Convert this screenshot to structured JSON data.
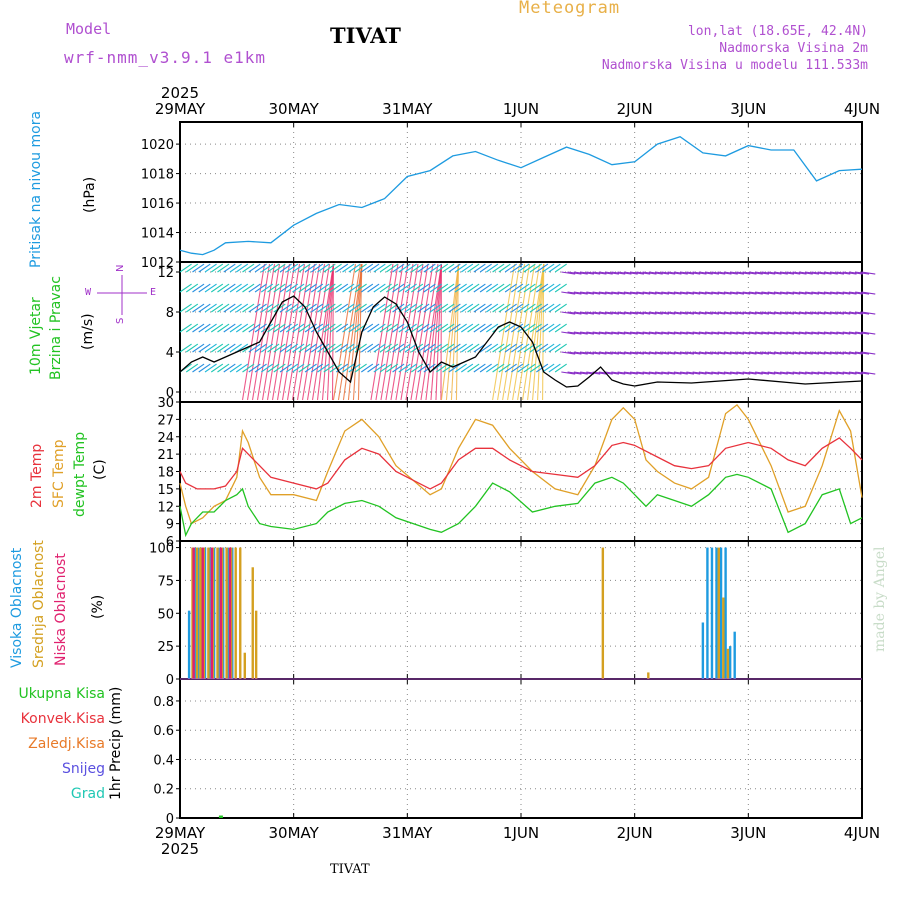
{
  "header": {
    "model_label": "Model",
    "model_name": "wrf-nmm_v3.9.1 e1km",
    "station": "TIVAT",
    "title": "Meteogram",
    "lonlat": "lon,lat (18.65E, 42.4N)",
    "elevation": "Nadmorska Visina 2m",
    "model_elevation": "Nadmorska Visina u modelu 111.533m",
    "footer_station": "TIVAT",
    "credit": "made by Angel"
  },
  "colors": {
    "pressure": "#1e9be0",
    "t2m": "#e8323c",
    "sfc": "#e0a028",
    "dew": "#22c322",
    "visoka": "#1e9be0",
    "srednja": "#d4a020",
    "niska": "#e0206e",
    "purple": "#a030c8",
    "wind_speed": "#000000"
  },
  "chart_data": [
    {
      "type": "line",
      "panel": "pressure",
      "ylabel_main": "Pritisak na nivou mora",
      "unit": "(hPa)",
      "x_ticks": [
        "29MAY",
        "30MAY",
        "31MAY",
        "1JUN",
        "2JUN",
        "3JUN",
        "4JUN"
      ],
      "x_year": "2025",
      "y_ticks": [
        "1012",
        "1014",
        "1016",
        "1018",
        "1020"
      ],
      "ylim": [
        1012,
        1021.5
      ],
      "grid": true,
      "series": [
        {
          "x": [
            0,
            0.1,
            0.2,
            0.3,
            0.4,
            0.6,
            0.8,
            1.0,
            1.2,
            1.4,
            1.6,
            1.8,
            2.0,
            2.2,
            2.4,
            2.6,
            2.8,
            3.0,
            3.2,
            3.4,
            3.6,
            3.8,
            4.0,
            4.2,
            4.4,
            4.6,
            4.8,
            5.0,
            5.2,
            5.4,
            5.6,
            5.8,
            6.0
          ],
          "values": [
            1012.8,
            1012.6,
            1012.5,
            1012.8,
            1013.3,
            1013.4,
            1013.3,
            1014.5,
            1015.3,
            1015.9,
            1015.7,
            1016.3,
            1017.8,
            1018.2,
            1019.2,
            1019.5,
            1018.9,
            1018.4,
            1019.1,
            1019.8,
            1019.3,
            1018.6,
            1018.8,
            1020.0,
            1020.5,
            1019.4,
            1019.2,
            1019.9,
            1019.6,
            1019.6,
            1017.5,
            1018.2,
            1018.3
          ]
        }
      ]
    },
    {
      "type": "line",
      "panel": "wind",
      "ylabel_main": "10m Vjetar",
      "ylabel_sub": "Brzina i Pravac",
      "unit": "(m/s)",
      "compass_top": "N",
      "compass_left": "W",
      "compass_right": "E",
      "compass_bottom": "S",
      "y_ticks": [
        "0",
        "4",
        "8",
        "12"
      ],
      "ylim": [
        -1,
        13
      ],
      "grid": true,
      "series": [
        {
          "x": [
            0,
            0.1,
            0.2,
            0.3,
            0.4,
            0.5,
            0.6,
            0.7,
            0.8,
            0.9,
            1.0,
            1.1,
            1.2,
            1.3,
            1.4,
            1.5,
            1.6,
            1.7,
            1.8,
            1.9,
            2.0,
            2.1,
            2.2,
            2.3,
            2.4,
            2.5,
            2.6,
            2.7,
            2.8,
            2.9,
            3.0,
            3.1,
            3.2,
            3.3,
            3.4,
            3.5,
            3.6,
            3.7,
            3.8,
            3.9,
            4.0,
            4.2,
            4.5,
            5.0,
            5.5,
            6.0
          ],
          "values": [
            2,
            3,
            3.5,
            3,
            3.5,
            4,
            4.5,
            5,
            7,
            9,
            9.6,
            8.5,
            6,
            4,
            2,
            1,
            6,
            8.5,
            9.5,
            8.8,
            7,
            4,
            2,
            3,
            2.5,
            3,
            3.5,
            5,
            6.5,
            7,
            6.5,
            5,
            2,
            1.2,
            0.5,
            0.6,
            1.5,
            2.5,
            1.2,
            0.8,
            0.6,
            1.0,
            0.9,
            1.3,
            0.8,
            1.1
          ]
        }
      ]
    },
    {
      "type": "line",
      "panel": "temperature",
      "ylabel_t2m": "2m Temp",
      "ylabel_sfc": "SFC Temp",
      "ylabel_dew": "dewpt Temp",
      "unit": "(C)",
      "y_ticks": [
        "6",
        "9",
        "12",
        "15",
        "18",
        "21",
        "24",
        "27",
        "30"
      ],
      "ylim": [
        6,
        30
      ],
      "grid": true,
      "series": [
        {
          "x": [
            0,
            0.05,
            0.15,
            0.3,
            0.4,
            0.5,
            0.55,
            0.6,
            0.7,
            0.8,
            1.0,
            1.2,
            1.3,
            1.45,
            1.6,
            1.75,
            1.9,
            2.2,
            2.3,
            2.45,
            2.6,
            2.75,
            2.9,
            3.1,
            3.3,
            3.5,
            3.65,
            3.8,
            3.9,
            4.0,
            4.1,
            4.2,
            4.35,
            4.5,
            4.65,
            4.8,
            5.0,
            5.2,
            5.35,
            5.5,
            5.65,
            5.8,
            5.9,
            6.0
          ],
          "values": [
            18,
            16,
            15,
            15,
            15.5,
            18,
            22,
            21,
            19,
            17,
            16,
            15,
            16,
            20,
            22,
            21,
            18,
            15,
            16,
            20,
            22,
            22,
            20,
            18,
            17.5,
            17,
            19,
            22.5,
            23,
            22.5,
            21.5,
            20.5,
            19,
            18.5,
            19,
            22,
            23,
            22,
            20,
            19,
            22,
            23.8,
            22,
            20
          ]
        },
        {
          "x": [
            0,
            0.05,
            0.1,
            0.2,
            0.3,
            0.4,
            0.5,
            0.55,
            0.6,
            0.7,
            0.8,
            1.0,
            1.2,
            1.3,
            1.45,
            1.6,
            1.75,
            1.9,
            2.2,
            2.3,
            2.45,
            2.6,
            2.75,
            2.9,
            3.1,
            3.3,
            3.5,
            3.65,
            3.8,
            3.9,
            4.0,
            4.1,
            4.2,
            4.35,
            4.5,
            4.65,
            4.8,
            4.9,
            5.0,
            5.2,
            5.35,
            5.5,
            5.65,
            5.8,
            5.9,
            6.0
          ],
          "values": [
            16,
            12,
            9,
            10,
            12,
            13,
            17,
            25,
            23,
            17,
            14,
            14,
            13,
            18,
            25,
            27,
            24,
            19,
            14,
            15,
            22,
            27,
            26,
            22,
            18,
            15,
            14,
            19,
            27,
            29,
            27,
            20,
            18,
            16,
            15,
            17,
            28,
            29.5,
            27,
            19,
            11,
            12,
            19,
            28.5,
            25,
            13.5
          ]
        },
        {
          "x": [
            0,
            0.05,
            0.1,
            0.2,
            0.3,
            0.4,
            0.5,
            0.55,
            0.6,
            0.7,
            0.8,
            1.0,
            1.2,
            1.3,
            1.45,
            1.6,
            1.75,
            1.9,
            2.2,
            2.3,
            2.45,
            2.6,
            2.75,
            2.9,
            3.1,
            3.3,
            3.5,
            3.65,
            3.8,
            3.9,
            4.0,
            4.1,
            4.2,
            4.35,
            4.5,
            4.65,
            4.8,
            4.9,
            5.0,
            5.2,
            5.35,
            5.5,
            5.65,
            5.8,
            5.9,
            6.0
          ],
          "values": [
            12,
            7,
            9,
            11,
            11,
            13,
            14,
            15,
            12,
            9,
            8.5,
            8,
            9,
            11,
            12.5,
            13,
            12,
            10,
            8,
            7.5,
            9,
            12,
            16,
            14.5,
            11,
            12,
            12.5,
            16,
            17,
            16,
            14,
            12,
            14,
            13,
            12,
            14,
            17,
            17.5,
            17,
            15,
            7.5,
            9,
            14,
            15,
            9,
            10
          ]
        }
      ]
    },
    {
      "type": "bar",
      "panel": "clouds",
      "ylabel_visoka": "Visoka Oblacnost",
      "ylabel_srednja": "Srednja Oblacnost",
      "ylabel_niska": "Niska Oblacnost",
      "unit": "(%)",
      "y_ticks": [
        "0",
        "25",
        "50",
        "75",
        "100"
      ],
      "ylim": [
        0,
        105
      ],
      "grid": true,
      "series": [
        {
          "name": "Visoka",
          "x": [
            0.08,
            0.13,
            0.16,
            0.19,
            0.22,
            0.26,
            0.3,
            0.34,
            0.38,
            0.42,
            0.46,
            4.6,
            4.64,
            4.68,
            4.72,
            4.76,
            4.8,
            4.84,
            4.88
          ],
          "values": [
            52,
            100,
            100,
            100,
            100,
            100,
            100,
            100,
            100,
            100,
            100,
            43,
            100,
            100,
            100,
            100,
            100,
            25,
            36
          ]
        },
        {
          "name": "Srednja",
          "x": [
            0.11,
            0.15,
            0.18,
            0.21,
            0.25,
            0.29,
            0.33,
            0.37,
            0.41,
            0.45,
            0.49,
            0.53,
            0.57,
            0.64,
            0.67,
            3.72,
            4.12,
            4.74,
            4.78,
            4.82
          ],
          "values": [
            100,
            100,
            100,
            100,
            100,
            100,
            100,
            100,
            100,
            100,
            100,
            100,
            20,
            85,
            52,
            100,
            5,
            100,
            62,
            23
          ]
        },
        {
          "name": "Niska",
          "x": [
            0.12,
            0.2,
            0.28,
            0.36,
            0.44
          ],
          "values": [
            100,
            100,
            100,
            100,
            100
          ]
        }
      ]
    },
    {
      "type": "bar",
      "panel": "precip",
      "ylabel": "1hr Precip (mm)",
      "legend": [
        "Ukupna Kisa",
        "Konvek.Kisa",
        "Zaledj.Kisa",
        "Snijeg",
        "Grad"
      ],
      "legend_colors": [
        "#22c322",
        "#e8323c",
        "#e87a28",
        "#5a50e0",
        "#20c8b4"
      ],
      "y_ticks": [
        "0",
        "0.2",
        "0.4",
        "0.6",
        "0.8"
      ],
      "ylim": [
        0,
        0.95
      ],
      "grid": true,
      "series": [
        {
          "name": "Ukupna Kisa",
          "x": [
            0.36
          ],
          "values": [
            0.01
          ]
        }
      ]
    }
  ]
}
